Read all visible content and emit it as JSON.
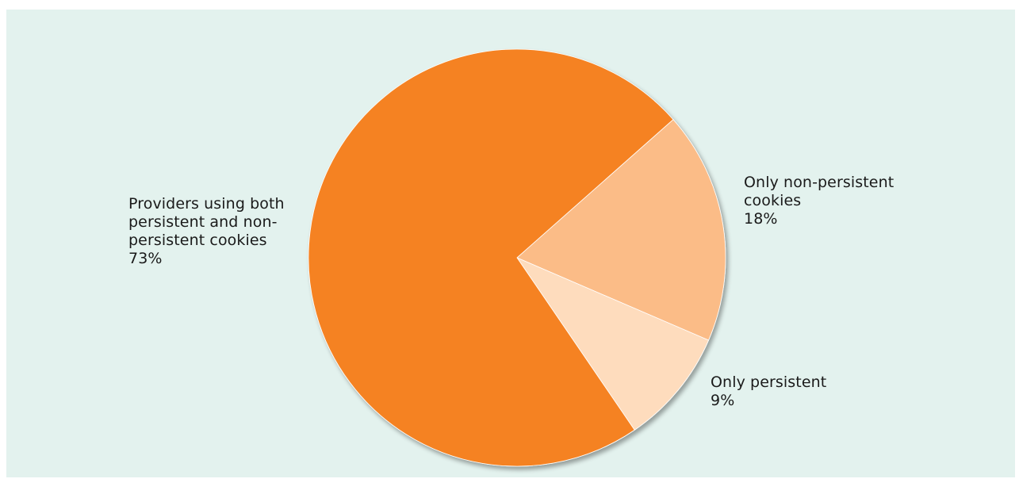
{
  "chart_data": {
    "type": "pie",
    "title": "",
    "slices": [
      {
        "label": "Providers using both persistent and non-persistent cookies",
        "value": 73,
        "value_label": "73%",
        "color": "#f58220"
      },
      {
        "label": "Only non-persistent cookies",
        "value": 18,
        "value_label": "18%",
        "color": "#fbbc87"
      },
      {
        "label": "Only persistent",
        "value": 9,
        "value_label": "9%",
        "color": "#fedcbd"
      }
    ]
  },
  "labels": {
    "both": {
      "name": "Providers using both\npersistent and non-\npersistent cookies",
      "pct": "73%"
    },
    "non_persistent": {
      "name": "Only non-persistent\ncookies",
      "pct": "18%"
    },
    "persistent": {
      "name": "Only persistent",
      "pct": "9%"
    }
  },
  "colors": {
    "background": "#e3f2ee",
    "text": "#1a1a1a"
  }
}
